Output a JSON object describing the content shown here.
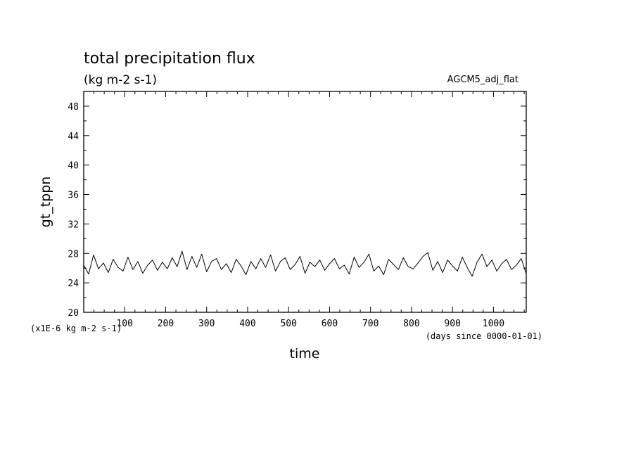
{
  "chart_data": {
    "type": "line",
    "title": "total precipitation flux",
    "subtitle": "(kg m-2 s-1)",
    "run_label": "AGCM5_adj_flat",
    "xlabel": "time",
    "ylabel": "gt_tppn",
    "x_unit_note": "(days since 0000-01-01)",
    "y_unit_note": "(x1E-6 kg m-2 s-1)",
    "xlim": [
      0,
      1080
    ],
    "ylim": [
      20,
      50
    ],
    "x_ticks": [
      100,
      200,
      300,
      400,
      500,
      600,
      700,
      800,
      900,
      1000
    ],
    "x_tick_labels": [
      "100",
      "200",
      "300",
      "400",
      "500",
      "600",
      "700",
      "800",
      "900",
      "1000"
    ],
    "y_ticks": [
      20,
      24,
      28,
      32,
      36,
      40,
      44,
      48
    ],
    "y_tick_labels": [
      "20",
      "24",
      "28",
      "32",
      "36",
      "40",
      "44",
      "48"
    ],
    "grid": false,
    "legend": "none",
    "series": [
      {
        "color": "#000000",
        "x": [
          0,
          12,
          24,
          36,
          48,
          60,
          72,
          84,
          96,
          108,
          120,
          132,
          144,
          156,
          168,
          180,
          192,
          204,
          216,
          228,
          240,
          252,
          264,
          276,
          288,
          300,
          312,
          324,
          336,
          348,
          360,
          372,
          384,
          396,
          408,
          420,
          432,
          444,
          456,
          468,
          480,
          492,
          504,
          516,
          528,
          540,
          552,
          564,
          576,
          588,
          600,
          612,
          624,
          636,
          648,
          660,
          672,
          684,
          696,
          708,
          720,
          732,
          744,
          756,
          768,
          780,
          792,
          804,
          816,
          828,
          840,
          852,
          864,
          876,
          888,
          900,
          912,
          924,
          936,
          948,
          960,
          972,
          984,
          996,
          1008,
          1020,
          1032,
          1044,
          1056,
          1068,
          1080
        ],
        "y": [
          26.4,
          25.2,
          27.8,
          25.9,
          26.7,
          25.4,
          27.2,
          26.1,
          25.6,
          27.5,
          25.8,
          26.9,
          25.3,
          26.4,
          27.1,
          25.7,
          26.8,
          25.9,
          27.4,
          26.2,
          28.3,
          25.8,
          27.6,
          26.1,
          27.9,
          25.5,
          26.9,
          27.3,
          25.8,
          26.6,
          25.4,
          27.2,
          26.3,
          25.1,
          26.9,
          25.9,
          27.3,
          26.1,
          27.8,
          25.6,
          26.9,
          27.4,
          25.8,
          26.5,
          27.6,
          25.3,
          26.8,
          26.2,
          27.1,
          25.7,
          26.6,
          27.3,
          25.9,
          26.4,
          25.2,
          27.5,
          26.1,
          26.8,
          27.9,
          25.6,
          26.3,
          25.1,
          27.2,
          26.5,
          25.8,
          27.4,
          26.2,
          25.9,
          26.7,
          27.6,
          28.1,
          25.7,
          26.9,
          25.4,
          27.1,
          26.3,
          25.6,
          27.5,
          26.1,
          24.9,
          26.8,
          27.9,
          26.2,
          27.1,
          25.6,
          26.6,
          27.2,
          25.8,
          26.4,
          27.3,
          25.2
        ]
      }
    ]
  }
}
